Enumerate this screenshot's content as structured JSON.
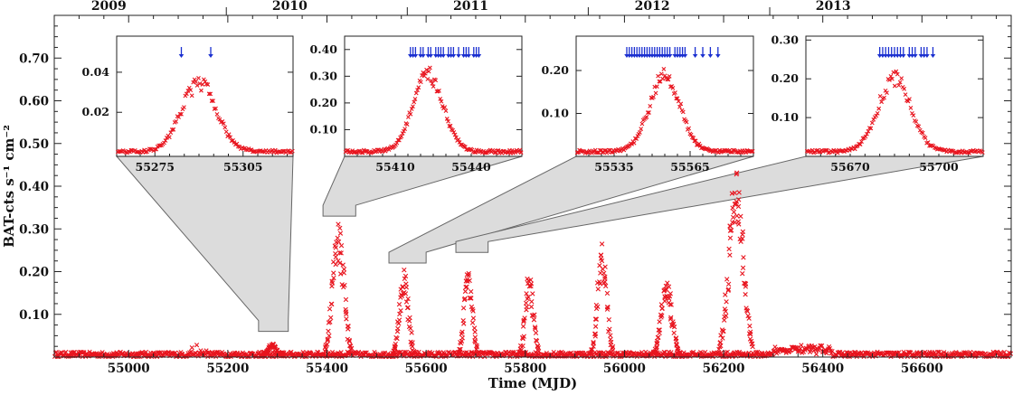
{
  "chart_data": {
    "type": "scatter",
    "xlabel": "Time (MJD)",
    "ylabel": "BAT-cts s⁻¹ cm⁻²",
    "xlim": [
      54850,
      56780
    ],
    "ylim": [
      0,
      0.8
    ],
    "xticks": [
      55000,
      55200,
      55400,
      55600,
      55800,
      56000,
      56200,
      56400,
      56600
    ],
    "yticks": [
      0.1,
      0.2,
      0.3,
      0.4,
      0.5,
      0.6,
      0.7
    ],
    "ytick_labels": [
      "0.10",
      "0.20",
      "0.30",
      "0.40",
      "0.50",
      "0.60",
      "0.70"
    ],
    "year_labels": [
      {
        "label": "2009",
        "mjd": 54960
      },
      {
        "label": "2010",
        "mjd": 55325
      },
      {
        "label": "2011",
        "mjd": 55690
      },
      {
        "label": "2012",
        "mjd": 56056
      },
      {
        "label": "2013",
        "mjd": 56421
      }
    ],
    "year_boundaries": [
      55197,
      55562,
      55927,
      56293
    ],
    "marker_color": "#e8141e",
    "arrow_color": "#1a2fd0",
    "outbursts": [
      {
        "center": 55290,
        "width": 9,
        "peak": 0.03
      },
      {
        "center": 55423,
        "width": 11,
        "peak": 0.3
      },
      {
        "center": 55555,
        "width": 9,
        "peak": 0.19
      },
      {
        "center": 55685,
        "width": 8,
        "peak": 0.2
      },
      {
        "center": 55808,
        "width": 8,
        "peak": 0.18
      },
      {
        "center": 55955,
        "width": 9,
        "peak": 0.25
      },
      {
        "center": 56085,
        "width": 11,
        "peak": 0.17
      },
      {
        "center": 56225,
        "width": 14,
        "peak": 0.42
      }
    ],
    "insets": [
      {
        "xlim": [
          55262,
          55322
        ],
        "ylim": [
          -0.002,
          0.058
        ],
        "xticks": [
          55275,
          55305
        ],
        "xtick_labels": [
          "55275",
          "55305"
        ],
        "yticks": [
          0.02,
          0.04
        ],
        "ytick_labels": [
          "0.02",
          "0.04"
        ],
        "peak_center": 55290,
        "peak_width": 6,
        "peak_value": 0.036,
        "arrows": [
          55284,
          55294
        ],
        "source_range": [
          55262,
          55322
        ],
        "source_y": 0.06
      },
      {
        "xlim": [
          55390,
          55460
        ],
        "ylim": [
          0,
          0.45
        ],
        "xticks": [
          55410,
          55440
        ],
        "xtick_labels": [
          "55410",
          "55440"
        ],
        "yticks": [
          0.1,
          0.2,
          0.3,
          0.4
        ],
        "ytick_labels": [
          "0.10",
          "0.20",
          "0.30",
          "0.40"
        ],
        "peak_center": 55423,
        "peak_width": 6,
        "peak_value": 0.3,
        "arrows": [
          55416,
          55417,
          55418,
          55420,
          55421,
          55423,
          55424,
          55426,
          55427,
          55428,
          55429,
          55431,
          55432,
          55433,
          55435,
          55437,
          55438,
          55439,
          55441,
          55442,
          55443
        ],
        "source_range": [
          55392,
          55458
        ],
        "source_y": 0.33
      },
      {
        "xlim": [
          55520,
          55590
        ],
        "ylim": [
          0,
          0.28
        ],
        "xticks": [
          55535,
          55565
        ],
        "xtick_labels": [
          "55535",
          "55565"
        ],
        "yticks": [
          0.1,
          0.2
        ],
        "ytick_labels": [
          "0.10",
          "0.20"
        ],
        "peak_center": 55555,
        "peak_width": 6,
        "peak_value": 0.19,
        "arrows": [
          55540,
          55541,
          55542,
          55543,
          55544,
          55545,
          55546,
          55547,
          55548,
          55549,
          55550,
          55551,
          55552,
          55553,
          55554,
          55555,
          55556,
          55557,
          55559,
          55560,
          55561,
          55562,
          55563,
          55567,
          55570,
          55573,
          55576
        ],
        "source_range": [
          55525,
          55600
        ],
        "source_y": 0.22
      },
      {
        "xlim": [
          55655,
          55715
        ],
        "ylim": [
          0,
          0.31
        ],
        "xticks": [
          55670,
          55700
        ],
        "xtick_labels": [
          "55670",
          "55700"
        ],
        "yticks": [
          0.1,
          0.2,
          0.3
        ],
        "ytick_labels": [
          "0.10",
          "0.20",
          "0.30"
        ],
        "peak_center": 55685,
        "peak_width": 5.5,
        "peak_value": 0.2,
        "arrows": [
          55680,
          55681,
          55682,
          55683,
          55684,
          55685,
          55686,
          55687,
          55688,
          55690,
          55691,
          55692,
          55694,
          55695,
          55696,
          55698
        ],
        "source_range": [
          55660,
          55725
        ],
        "source_y": 0.245
      }
    ]
  }
}
